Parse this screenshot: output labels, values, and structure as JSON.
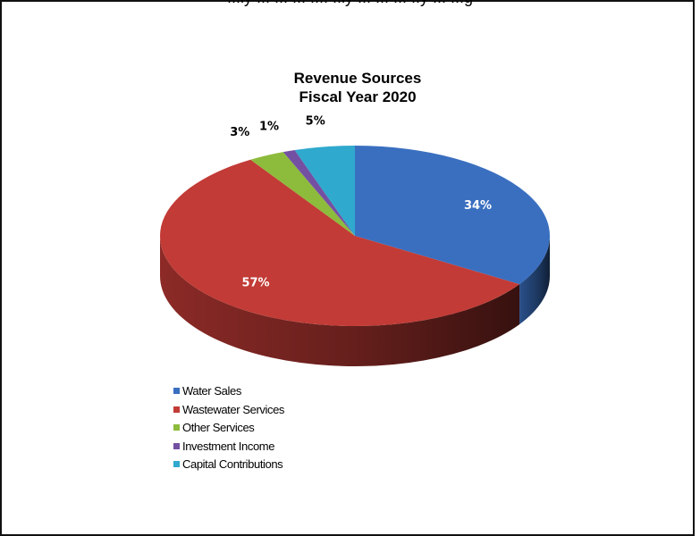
{
  "page": {
    "clipped_text": "...ly ... ... ... .... ..ly ... ... ... ..y ...  ...g"
  },
  "chart_data": {
    "type": "pie",
    "title_lines": [
      "Revenue Sources",
      "Fiscal Year 2020"
    ],
    "slices": [
      {
        "label": "Water Sales",
        "value": 34,
        "display": "34%",
        "color": "#3a6fc0"
      },
      {
        "label": "Wastewater Services",
        "value": 57,
        "display": "57%",
        "color": "#c23b36"
      },
      {
        "label": "Other Services",
        "value": 3,
        "display": "3%",
        "color": "#8dbb3c"
      },
      {
        "label": "Investment Income",
        "value": 1,
        "display": "1%",
        "color": "#7450a3"
      },
      {
        "label": "Capital Contributions",
        "value": 5,
        "display": "5%",
        "color": "#2fa9cd"
      }
    ],
    "legend_position": "bottom-left",
    "style": "3d"
  }
}
